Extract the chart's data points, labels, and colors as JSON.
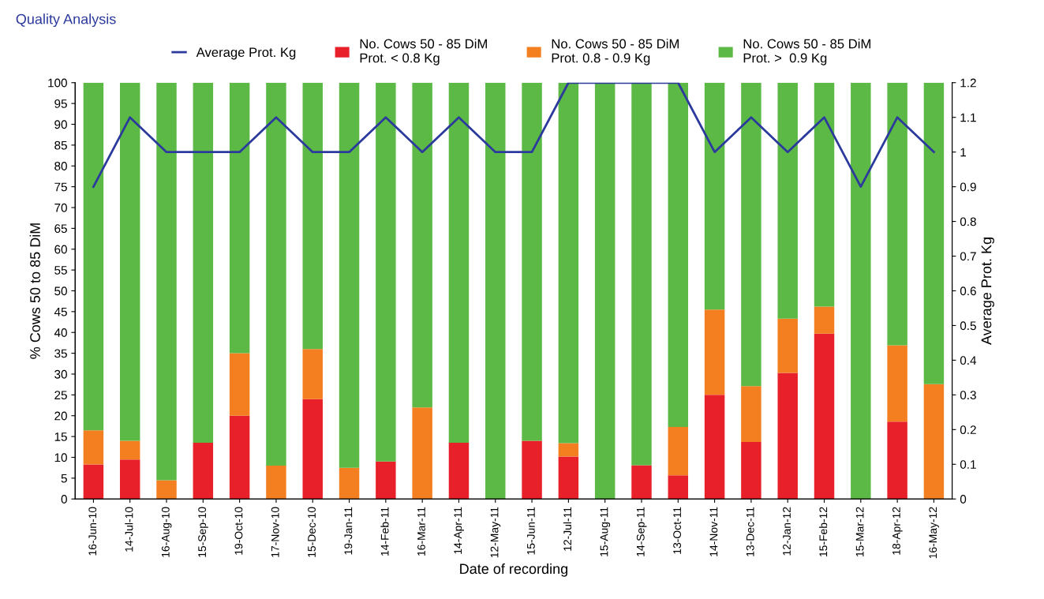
{
  "chart_data": {
    "type": "bar",
    "title": "Quality Analysis",
    "xlabel": "Date of recording",
    "ylabel": "% Cows 50 to 85 DiM",
    "y2label": "Average Prot. Kg",
    "categories": [
      "16-Jun-10",
      "14-Jul-10",
      "16-Aug-10",
      "15-Sep-10",
      "19-Oct-10",
      "17-Nov-10",
      "15-Dec-10",
      "19-Jan-11",
      "14-Feb-11",
      "16-Mar-11",
      "14-Apr-11",
      "12-May-11",
      "15-Jun-11",
      "12-Jul-11",
      "15-Aug-11",
      "14-Sep-11",
      "13-Oct-11",
      "14-Nov-11",
      "13-Dec-11",
      "12-Jan-12",
      "15-Feb-12",
      "15-Mar-12",
      "18-Apr-12",
      "16-May-12"
    ],
    "stacked": true,
    "series": [
      {
        "name": "No. Cows 50 - 85 DiM\nProt. < 0.8 Kg",
        "color": "#e8202a",
        "values": [
          8.3,
          9.5,
          0,
          13.5,
          20,
          0,
          24,
          0,
          9,
          0,
          13.5,
          0,
          14,
          10.2,
          0,
          8.1,
          5.7,
          25,
          13.7,
          30.3,
          39.7,
          0,
          18.6,
          0
        ]
      },
      {
        "name": "No. Cows 50 - 85 DiM\nProt. 0.8 - 0.9 Kg",
        "color": "#f47f20",
        "values": [
          8.2,
          4.5,
          4.5,
          0,
          15,
          8,
          12,
          7.5,
          0,
          22,
          0,
          0,
          0,
          3.2,
          0,
          0,
          11.6,
          20.5,
          13.4,
          13,
          6.5,
          0,
          18.3,
          27.6
        ]
      },
      {
        "name": "No. Cows 50 - 85 DiM\nProt. >  0.9 Kg",
        "color": "#5cb946",
        "values": [
          83.5,
          86,
          95.5,
          86.5,
          65,
          92,
          64,
          92.5,
          91,
          78,
          86.5,
          100,
          86,
          86.6,
          100,
          91.9,
          82.7,
          54.5,
          72.9,
          56.7,
          53.8,
          100,
          63.1,
          72.4
        ]
      },
      {
        "name": "Average Prot. Kg",
        "type": "line",
        "axis": "y2",
        "color": "#2b3a9c",
        "values": [
          0.9,
          1.1,
          1,
          1,
          1,
          1.1,
          1,
          1,
          1.1,
          1,
          1.1,
          1,
          1,
          1.2,
          1.2,
          1.2,
          1.2,
          1,
          1.1,
          1,
          1.1,
          0.9,
          1.1,
          1
        ]
      }
    ],
    "ylim": [
      0,
      100
    ],
    "yticks": [
      0,
      5,
      10,
      15,
      20,
      25,
      30,
      35,
      40,
      45,
      50,
      55,
      60,
      65,
      70,
      75,
      80,
      85,
      90,
      95,
      100
    ],
    "y2lim": [
      0,
      1.2
    ],
    "y2ticks": [
      0,
      0.1,
      0.2,
      0.3,
      0.4,
      0.5,
      0.6,
      0.7,
      0.8,
      0.9,
      1,
      1.1,
      1.2
    ],
    "grid": false,
    "legend": "top",
    "marker": "none",
    "line_style": "solid"
  }
}
